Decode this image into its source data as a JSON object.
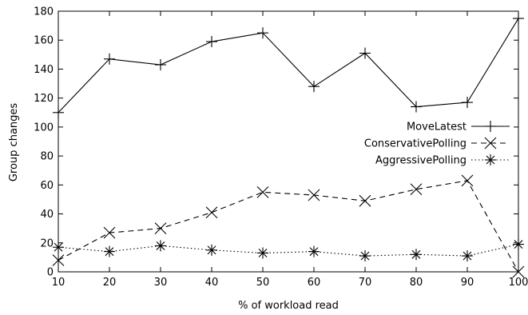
{
  "chart_data": {
    "type": "line",
    "xlabel": "% of workload read",
    "ylabel": "Group changes",
    "xlim": [
      10,
      100
    ],
    "ylim": [
      0,
      180
    ],
    "x_ticks": [
      "10",
      "20",
      "30",
      "40",
      "50",
      "60",
      "70",
      "80",
      "90",
      "100"
    ],
    "y_ticks": [
      "0",
      "20",
      "40",
      "60",
      "80",
      "100",
      "120",
      "140",
      "160",
      "180"
    ],
    "x": [
      10,
      20,
      30,
      40,
      50,
      60,
      70,
      80,
      90,
      100
    ],
    "grid": false,
    "legend_position": "right-middle",
    "series": [
      {
        "name": "MoveLatest",
        "marker": "plus",
        "line": "solid",
        "values": [
          110,
          147,
          143,
          159,
          165,
          128,
          151,
          114,
          117,
          175
        ]
      },
      {
        "name": "ConservativePolling",
        "marker": "cross",
        "line": "dashed",
        "values": [
          8,
          27,
          30,
          41,
          55,
          53,
          49,
          57,
          63,
          0
        ]
      },
      {
        "name": "AggressivePolling",
        "marker": "star",
        "line": "dotted",
        "values": [
          17,
          14,
          18,
          15,
          13,
          14,
          11,
          12,
          11,
          19
        ]
      }
    ]
  }
}
